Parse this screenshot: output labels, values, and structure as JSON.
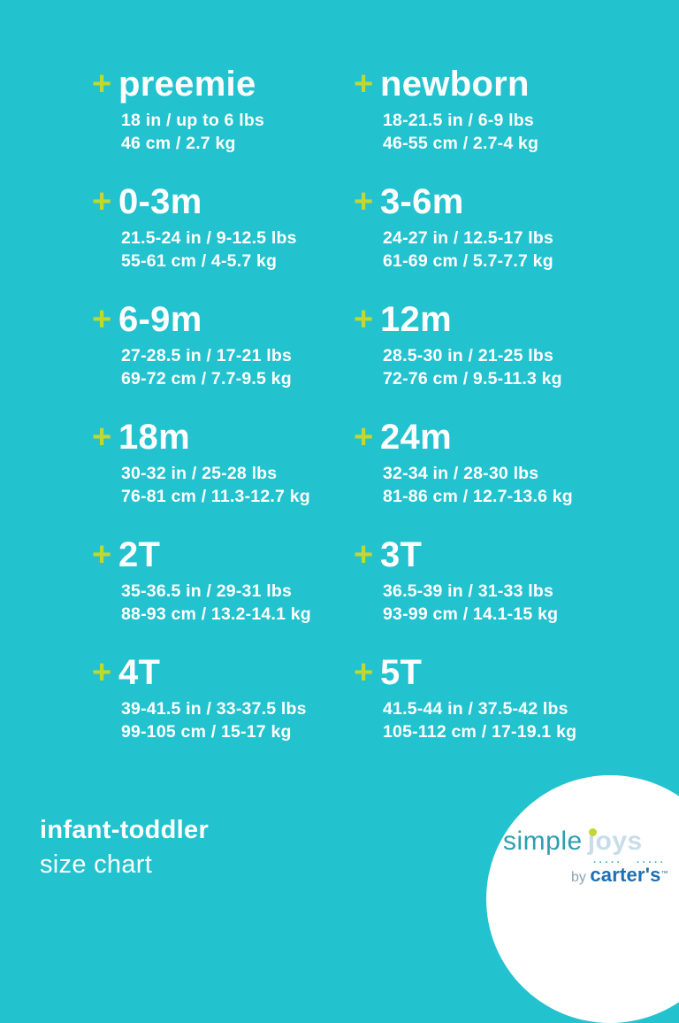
{
  "page": {
    "background_color": "#23c2cf",
    "plus_color": "#bfd930",
    "text_color": "#ffffff"
  },
  "plus_glyph": "+",
  "sizes": [
    {
      "label": "preemie",
      "imperial": "18 in / up to 6 lbs",
      "metric": "46 cm / 2.7 kg"
    },
    {
      "label": "newborn",
      "imperial": "18-21.5 in / 6-9 lbs",
      "metric": "46-55 cm / 2.7-4 kg"
    },
    {
      "label": "0-3m",
      "imperial": "21.5-24 in / 9-12.5 lbs",
      "metric": "55-61 cm / 4-5.7 kg"
    },
    {
      "label": "3-6m",
      "imperial": "24-27 in / 12.5-17 lbs",
      "metric": "61-69 cm / 5.7-7.7 kg"
    },
    {
      "label": "6-9m",
      "imperial": "27-28.5 in / 17-21 lbs",
      "metric": "69-72 cm / 7.7-9.5 kg"
    },
    {
      "label": "12m",
      "imperial": "28.5-30 in / 21-25 lbs",
      "metric": "72-76 cm / 9.5-11.3 kg"
    },
    {
      "label": "18m",
      "imperial": "30-32 in / 25-28 lbs",
      "metric": "76-81 cm / 11.3-12.7 kg"
    },
    {
      "label": "24m",
      "imperial": "32-34 in / 28-30 lbs",
      "metric": "81-86 cm / 12.7-13.6 kg"
    },
    {
      "label": "2T",
      "imperial": "35-36.5 in / 29-31 lbs",
      "metric": "88-93 cm / 13.2-14.1 kg"
    },
    {
      "label": "3T",
      "imperial": "36.5-39 in / 31-33 lbs",
      "metric": "93-99 cm / 14.1-15 kg"
    },
    {
      "label": "4T",
      "imperial": "39-41.5 in / 33-37.5 lbs",
      "metric": "99-105 cm / 15-17 kg"
    },
    {
      "label": "5T",
      "imperial": "41.5-44 in / 37.5-42 lbs",
      "metric": "105-112 cm / 17-19.1 kg"
    }
  ],
  "footer": {
    "title": "infant-toddler",
    "subtitle": "size chart"
  },
  "logo": {
    "simple": "simple",
    "joys": "joys",
    "by": "by ",
    "brand": "carter's",
    "tm": "™",
    "stitches": "·····",
    "simple_color": "#2d9fae",
    "joys_color": "#c8dde9",
    "dot_color": "#c2d830",
    "brand_color": "#1e6fb4"
  }
}
